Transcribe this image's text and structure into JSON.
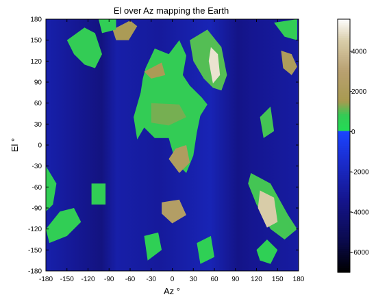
{
  "chart_data": {
    "type": "heatmap",
    "title": "El over Az mapping the Earth",
    "xlabel": "Az °",
    "ylabel": "El °",
    "xlim": [
      -180,
      180
    ],
    "ylim": [
      -180,
      180
    ],
    "xticks": [
      -180,
      -150,
      -120,
      -90,
      -60,
      -30,
      0,
      30,
      60,
      90,
      120,
      150,
      180
    ],
    "yticks": [
      180,
      150,
      120,
      90,
      60,
      30,
      0,
      -30,
      -60,
      -90,
      -120,
      -150,
      -180
    ],
    "colorbar": {
      "range": [
        -7000,
        5600
      ],
      "ticks": [
        4000,
        2000,
        0,
        -2000,
        -4000,
        -6000
      ],
      "stops": [
        {
          "value": -7000,
          "color": "#000000"
        },
        {
          "value": -5500,
          "color": "#0a0a4a"
        },
        {
          "value": -3500,
          "color": "#14148a"
        },
        {
          "value": -1500,
          "color": "#1a2ccc"
        },
        {
          "value": 0,
          "color": "#1a44ff"
        },
        {
          "value": 1,
          "color": "#22dd55"
        },
        {
          "value": 800,
          "color": "#33cc55"
        },
        {
          "value": 1500,
          "color": "#a89a50"
        },
        {
          "value": 3000,
          "color": "#b8a070"
        },
        {
          "value": 4500,
          "color": "#d8cca8"
        },
        {
          "value": 5600,
          "color": "#ffffff"
        }
      ]
    },
    "landmasses": [
      {
        "name": "europe-africa",
        "elevation": 800,
        "poly": [
          [
            -38,
            110
          ],
          [
            -25,
            138
          ],
          [
            -5,
            130
          ],
          [
            10,
            150
          ],
          [
            20,
            128
          ],
          [
            15,
            100
          ],
          [
            25,
            85
          ],
          [
            42,
            68
          ],
          [
            50,
            58
          ],
          [
            40,
            42
          ],
          [
            35,
            18
          ],
          [
            30,
            -15
          ],
          [
            20,
            -40
          ],
          [
            5,
            -25
          ],
          [
            -5,
            10
          ],
          [
            -25,
            10
          ],
          [
            -40,
            25
          ],
          [
            -50,
            8
          ],
          [
            -55,
            40
          ],
          [
            -45,
            75
          ],
          [
            -42,
            95
          ]
        ]
      },
      {
        "name": "africa-highland",
        "elevation": 2200,
        "poly": [
          [
            5,
            -5
          ],
          [
            20,
            0
          ],
          [
            25,
            -25
          ],
          [
            10,
            -40
          ],
          [
            -5,
            -20
          ]
        ]
      },
      {
        "name": "sahara",
        "elevation": 1200,
        "poly": [
          [
            -30,
            60
          ],
          [
            10,
            58
          ],
          [
            20,
            40
          ],
          [
            -5,
            28
          ],
          [
            -30,
            32
          ]
        ]
      },
      {
        "name": "asia",
        "elevation": 1000,
        "poly": [
          [
            25,
            150
          ],
          [
            50,
            165
          ],
          [
            70,
            140
          ],
          [
            78,
            100
          ],
          [
            70,
            78
          ],
          [
            58,
            82
          ],
          [
            45,
            95
          ],
          [
            30,
            120
          ]
        ]
      },
      {
        "name": "himalaya",
        "elevation": 5000,
        "poly": [
          [
            55,
            140
          ],
          [
            65,
            130
          ],
          [
            68,
            100
          ],
          [
            58,
            88
          ],
          [
            52,
            120
          ]
        ]
      },
      {
        "name": "antarctica-top",
        "elevation": 1800,
        "poly": [
          [
            -85,
            165
          ],
          [
            -60,
            178
          ],
          [
            -50,
            170
          ],
          [
            -62,
            150
          ],
          [
            -80,
            150
          ]
        ]
      },
      {
        "name": "north-america",
        "elevation": 800,
        "poly": [
          [
            -150,
            150
          ],
          [
            -125,
            168
          ],
          [
            -110,
            160
          ],
          [
            -100,
            130
          ],
          [
            -110,
            110
          ],
          [
            -125,
            115
          ],
          [
            -140,
            130
          ]
        ]
      },
      {
        "name": "south-america-left",
        "elevation": 700,
        "poly": [
          [
            -180,
            -120
          ],
          [
            -160,
            -95
          ],
          [
            -140,
            -90
          ],
          [
            -130,
            -110
          ],
          [
            -150,
            -130
          ],
          [
            -175,
            -140
          ]
        ]
      },
      {
        "name": "antarctica-mid",
        "elevation": 2500,
        "poly": [
          [
            -15,
            -82
          ],
          [
            10,
            -78
          ],
          [
            20,
            -100
          ],
          [
            0,
            -112
          ],
          [
            -15,
            -98
          ]
        ]
      },
      {
        "name": "australia-right",
        "elevation": 600,
        "poly": [
          [
            120,
            -150
          ],
          [
            135,
            -135
          ],
          [
            150,
            -150
          ],
          [
            140,
            -170
          ],
          [
            125,
            -165
          ]
        ]
      },
      {
        "name": "greenland",
        "elevation": 2000,
        "poly": [
          [
            155,
            135
          ],
          [
            170,
            130
          ],
          [
            178,
            112
          ],
          [
            170,
            100
          ],
          [
            158,
            110
          ]
        ]
      },
      {
        "name": "right-continent",
        "elevation": 900,
        "poly": [
          [
            112,
            -40
          ],
          [
            140,
            -55
          ],
          [
            165,
            -100
          ],
          [
            178,
            -120
          ],
          [
            160,
            -135
          ],
          [
            140,
            -120
          ],
          [
            120,
            -85
          ],
          [
            108,
            -55
          ]
        ]
      },
      {
        "name": "right-highland",
        "elevation": 4500,
        "poly": [
          [
            125,
            -65
          ],
          [
            145,
            -75
          ],
          [
            150,
            -110
          ],
          [
            135,
            -118
          ],
          [
            122,
            -90
          ]
        ]
      },
      {
        "name": "left-strip-low",
        "elevation": 700,
        "poly": [
          [
            -180,
            -30
          ],
          [
            -165,
            -55
          ],
          [
            -170,
            -85
          ],
          [
            -180,
            -95
          ]
        ]
      },
      {
        "name": "mid-islands",
        "elevation": 600,
        "poly": [
          [
            -40,
            -130
          ],
          [
            -20,
            -125
          ],
          [
            -15,
            -150
          ],
          [
            -35,
            -165
          ]
        ]
      },
      {
        "name": "mid-islands-2",
        "elevation": 600,
        "poly": [
          [
            35,
            -140
          ],
          [
            55,
            -130
          ],
          [
            60,
            -160
          ],
          [
            40,
            -170
          ]
        ]
      },
      {
        "name": "left-block",
        "elevation": 700,
        "poly": [
          [
            -115,
            -55
          ],
          [
            -95,
            -55
          ],
          [
            -95,
            -85
          ],
          [
            -115,
            -85
          ]
        ]
      },
      {
        "name": "right-top",
        "elevation": 800,
        "poly": [
          [
            145,
            175
          ],
          [
            178,
            180
          ],
          [
            178,
            150
          ],
          [
            160,
            155
          ]
        ]
      },
      {
        "name": "left-top",
        "elevation": 700,
        "poly": [
          [
            -105,
            180
          ],
          [
            -80,
            180
          ],
          [
            -80,
            165
          ],
          [
            -100,
            160
          ]
        ]
      },
      {
        "name": "right-mid",
        "elevation": 900,
        "poly": [
          [
            125,
            40
          ],
          [
            140,
            55
          ],
          [
            145,
            20
          ],
          [
            130,
            10
          ]
        ]
      },
      {
        "name": "center-europe-highland",
        "elevation": 1800,
        "poly": [
          [
            -40,
            105
          ],
          [
            -15,
            118
          ],
          [
            -10,
            100
          ],
          [
            -30,
            95
          ]
        ]
      }
    ]
  }
}
